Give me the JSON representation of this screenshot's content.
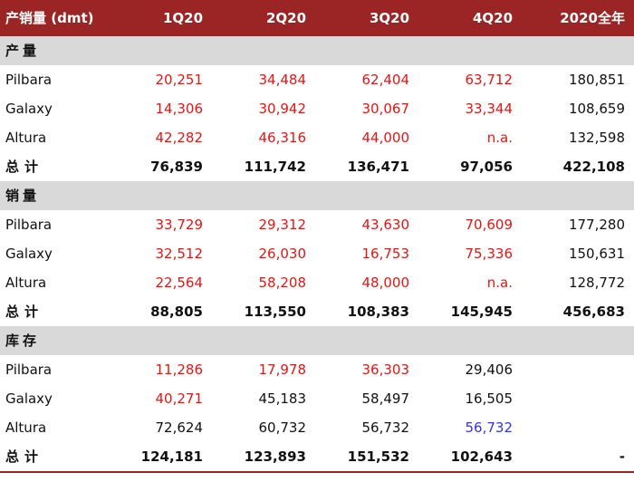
{
  "header": {
    "label": "产销量 (dmt)",
    "cols": [
      "1Q20",
      "2Q20",
      "3Q20",
      "4Q20",
      "2020全年"
    ]
  },
  "colors": {
    "header_bg": "#9b2424",
    "section_bg": "#d9d9d9",
    "red": "#ee1111",
    "blue": "#3333ee",
    "black": "#111111"
  },
  "sections": [
    {
      "title": "产量",
      "rows": [
        {
          "label": "Pilbara",
          "values": [
            "20,251",
            "34,484",
            "62,404",
            "63,712",
            "180,851"
          ],
          "colors": [
            "red",
            "red",
            "red",
            "red",
            "black"
          ]
        },
        {
          "label": "Galaxy",
          "values": [
            "14,306",
            "30,942",
            "30,067",
            "33,344",
            "108,659"
          ],
          "colors": [
            "red",
            "red",
            "red",
            "red",
            "black"
          ]
        },
        {
          "label": "Altura",
          "values": [
            "42,282",
            "46,316",
            "44,000",
            "n.a.",
            "132,598"
          ],
          "colors": [
            "red",
            "red",
            "red",
            "red",
            "black"
          ]
        }
      ],
      "total": {
        "label": "总计",
        "values": [
          "76,839",
          "111,742",
          "136,471",
          "97,056",
          "422,108"
        ]
      }
    },
    {
      "title": "销量",
      "rows": [
        {
          "label": "Pilbara",
          "values": [
            "33,729",
            "29,312",
            "43,630",
            "70,609",
            "177,280"
          ],
          "colors": [
            "red",
            "red",
            "red",
            "red",
            "black"
          ]
        },
        {
          "label": "Galaxy",
          "values": [
            "32,512",
            "26,030",
            "16,753",
            "75,336",
            "150,631"
          ],
          "colors": [
            "red",
            "red",
            "red",
            "red",
            "black"
          ]
        },
        {
          "label": "Altura",
          "values": [
            "22,564",
            "58,208",
            "48,000",
            "n.a.",
            "128,772"
          ],
          "colors": [
            "red",
            "red",
            "red",
            "red",
            "black"
          ]
        }
      ],
      "total": {
        "label": "总计",
        "values": [
          "88,805",
          "113,550",
          "108,383",
          "145,945",
          "456,683"
        ]
      }
    },
    {
      "title": "库存",
      "rows": [
        {
          "label": "Pilbara",
          "values": [
            "11,286",
            "17,978",
            "36,303",
            "29,406",
            ""
          ],
          "colors": [
            "red",
            "red",
            "red",
            "black",
            "black"
          ]
        },
        {
          "label": "Galaxy",
          "values": [
            "40,271",
            "45,183",
            "58,497",
            "16,505",
            ""
          ],
          "colors": [
            "red",
            "black",
            "black",
            "black",
            "black"
          ]
        },
        {
          "label": "Altura",
          "values": [
            "72,624",
            "60,732",
            "56,732",
            "56,732",
            ""
          ],
          "colors": [
            "black",
            "black",
            "black",
            "blue",
            "black"
          ]
        }
      ],
      "total": {
        "label": "总计",
        "values": [
          "124,181",
          "123,893",
          "151,532",
          "102,643",
          "-"
        ]
      }
    }
  ]
}
